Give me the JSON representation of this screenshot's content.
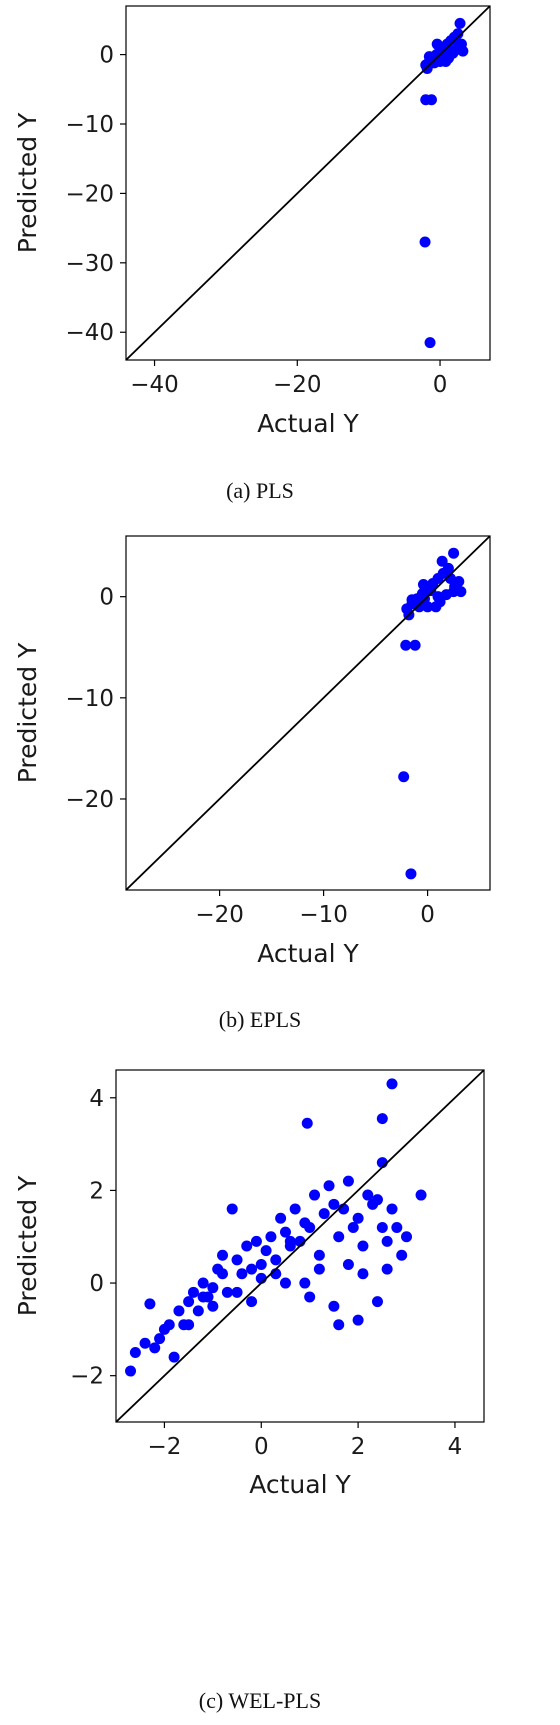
{
  "chart_data": [
    {
      "type": "scatter",
      "caption": "(a) PLS",
      "xlabel": "Actual Y",
      "ylabel": "Predicted Y",
      "xlim": [
        -44,
        7
      ],
      "ylim": [
        -44,
        7
      ],
      "xticks": [
        -40,
        -20,
        0
      ],
      "yticks": [
        0,
        -10,
        -20,
        -30,
        -40
      ],
      "reference_line": "y = x",
      "grid": false,
      "marker_color": "#0000ff",
      "series": [
        {
          "x": [
            2.8,
            2.5,
            2.0,
            1.5,
            1.0,
            0.5,
            0.0,
            -0.5,
            -1.0,
            -1.5,
            -2.0,
            1.0,
            2.0,
            3.0,
            0.0,
            1.2,
            2.2,
            0.3,
            -0.3,
            1.8,
            2.6,
            -1.8,
            -0.8,
            0.8,
            3.2,
            -1.5,
            -0.4,
            -2.0,
            -1.2,
            -2.1,
            -1.4
          ],
          "y": [
            4.5,
            3.0,
            2.5,
            2.0,
            1.5,
            1.0,
            0.5,
            0.0,
            -0.5,
            -1.0,
            -1.5,
            0.0,
            0.5,
            1.5,
            -1.0,
            -0.5,
            2.0,
            0.8,
            -0.2,
            0.2,
            1.0,
            -2.0,
            -1.2,
            -1.0,
            0.5,
            -0.3,
            1.5,
            -6.5,
            -6.5,
            -27,
            -41.5
          ]
        }
      ]
    },
    {
      "type": "scatter",
      "caption": "(b) EPLS",
      "xlabel": "Actual Y",
      "ylabel": "Predicted Y",
      "xlim": [
        -29,
        6
      ],
      "ylim": [
        -29,
        6
      ],
      "xticks": [
        -20,
        -10,
        0
      ],
      "yticks": [
        0,
        -10,
        -20
      ],
      "reference_line": "y = x",
      "grid": false,
      "marker_color": "#0000ff",
      "series": [
        {
          "x": [
            2.5,
            2.0,
            1.5,
            1.0,
            0.5,
            0.0,
            -0.5,
            -1.0,
            -1.5,
            -2.0,
            1.0,
            2.5,
            3.0,
            0.0,
            1.2,
            2.2,
            0.3,
            -0.3,
            1.8,
            2.6,
            -1.8,
            -0.8,
            0.8,
            3.2,
            -1.5,
            -0.4,
            1.4,
            -2.1,
            -1.2,
            -2.3,
            -1.6
          ],
          "y": [
            4.3,
            2.8,
            2.3,
            1.8,
            1.3,
            0.8,
            0.3,
            -0.2,
            -0.7,
            -1.2,
            0.0,
            0.5,
            1.5,
            -1.0,
            -0.5,
            1.8,
            0.6,
            -0.2,
            0.2,
            1.0,
            -1.8,
            -1.0,
            -1.0,
            0.5,
            -0.3,
            1.2,
            3.5,
            -4.8,
            -4.8,
            -17.8,
            -27.4
          ]
        }
      ]
    },
    {
      "type": "scatter",
      "caption": "(c) WEL-PLS",
      "xlabel": "Actual Y",
      "ylabel": "Predicted Y",
      "xlim": [
        -3,
        4.6
      ],
      "ylim": [
        -3,
        4.6
      ],
      "xticks": [
        -2,
        0,
        2,
        4
      ],
      "yticks": [
        4,
        2,
        0,
        -2
      ],
      "reference_line": "y = x",
      "grid": false,
      "marker_color": "#0000ff",
      "series": [
        {
          "x": [
            -2.7,
            -2.6,
            -2.4,
            -2.3,
            -2.2,
            -2.1,
            -2.0,
            -1.9,
            -1.8,
            -1.7,
            -1.6,
            -1.5,
            -1.4,
            -1.3,
            -1.2,
            -1.1,
            -1.0,
            -0.9,
            -0.8,
            -0.7,
            -0.6,
            -0.5,
            -0.4,
            -0.3,
            -0.2,
            -0.1,
            0.0,
            0.1,
            0.2,
            0.3,
            0.4,
            0.5,
            0.6,
            0.7,
            0.8,
            0.9,
            1.0,
            1.1,
            1.2,
            1.3,
            1.4,
            1.5,
            1.6,
            1.7,
            1.8,
            1.9,
            2.0,
            2.1,
            2.2,
            2.3,
            2.4,
            2.5,
            2.6,
            2.7,
            2.8,
            3.0,
            3.3,
            -1.5,
            -1.0,
            -0.5,
            0.0,
            0.5,
            1.0,
            1.5,
            2.0,
            -0.8,
            0.3,
            1.8,
            2.4,
            -1.2,
            0.6,
            1.2,
            2.1,
            2.9,
            -0.2,
            0.9,
            1.6,
            2.6,
            2.5,
            0.95,
            2.7,
            2.5
          ],
          "y": [
            -1.9,
            -1.5,
            -1.3,
            -0.45,
            -1.4,
            -1.2,
            -1.0,
            -0.9,
            -1.6,
            -0.6,
            -0.9,
            -0.4,
            -0.2,
            -0.6,
            0.0,
            -0.3,
            -0.1,
            0.3,
            0.6,
            -0.2,
            1.6,
            0.5,
            0.2,
            0.8,
            0.3,
            0.9,
            0.4,
            0.7,
            1.0,
            0.2,
            1.4,
            1.1,
            0.8,
            1.6,
            0.9,
            1.3,
            1.2,
            1.9,
            0.6,
            1.5,
            2.1,
            1.7,
            1.0,
            1.6,
            2.2,
            1.2,
            1.4,
            0.8,
            1.9,
            1.7,
            1.8,
            1.2,
            0.9,
            1.6,
            1.2,
            1.0,
            1.9,
            -0.9,
            -0.5,
            -0.2,
            0.1,
            0.0,
            -0.3,
            -0.5,
            -0.8,
            0.2,
            0.5,
            0.4,
            -0.4,
            -0.3,
            0.9,
            0.3,
            0.2,
            0.6,
            -0.4,
            0.0,
            -0.9,
            0.3,
            3.55,
            3.45,
            4.3,
            2.6
          ]
        }
      ]
    }
  ]
}
